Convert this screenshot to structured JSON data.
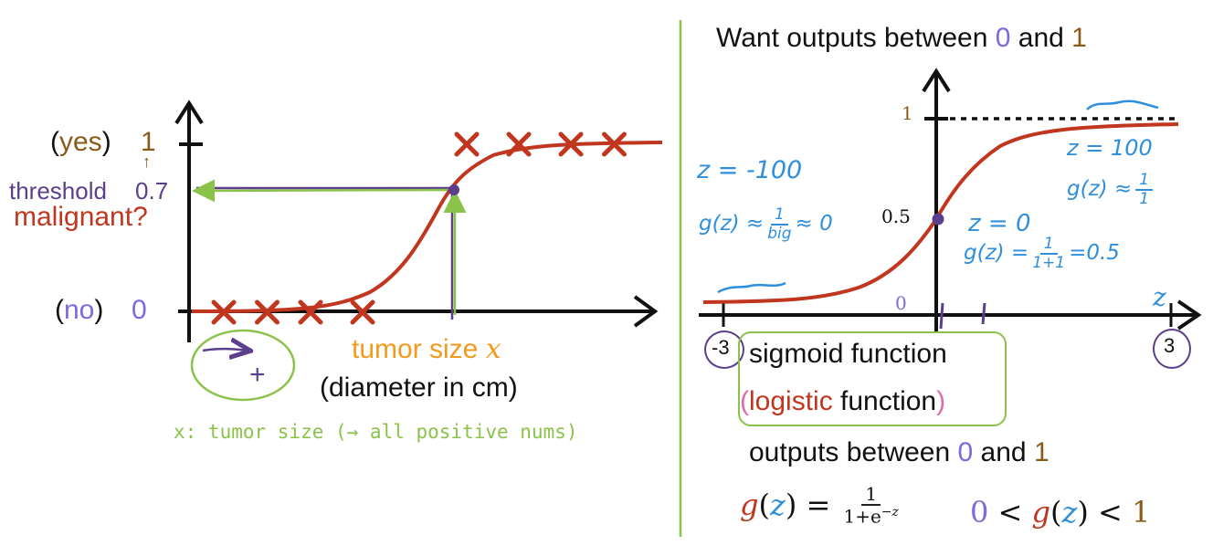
{
  "colors": {
    "ink": "#111111",
    "curve": "#c0361f",
    "cross": "#c0361f",
    "green": "#8bc34a",
    "purple": "#5b3f8c",
    "blue": "#2f8fdc",
    "orange": "#f29a1d",
    "brown": "#8a5a1a",
    "violet": "#7a6be0",
    "pink": "#e06ab0"
  },
  "left": {
    "yes_open": "(",
    "yes_word": "yes",
    "yes_close": ")",
    "yes_value": "1",
    "no_open": "(",
    "no_word": "no",
    "no_close": ")",
    "no_value": "0",
    "threshold_label": "threshold",
    "threshold_value": "0.7",
    "malignant_label": "malignant?",
    "xlabel_word": "tumor size ",
    "xlabel_var": "x",
    "xlabel_units": "(diameter in cm)",
    "note": "x: tumor size (→ all positive nums)",
    "plus_sign": "+"
  },
  "right": {
    "title_pre": "Want outputs between ",
    "title_zero": "0",
    "title_and": " and ",
    "title_one": "1",
    "tick_one": "1",
    "tick_half": "0.5",
    "tick_zero": "0",
    "axis_var": "z",
    "neg_label": "-3",
    "pos_label": "3",
    "z_neg100": "z = -100",
    "g_neg_left": "g(z) ≈",
    "g_neg_num": "1",
    "g_neg_den": "big",
    "g_neg_right": "≈ 0",
    "z_zero": "z = 0",
    "g_zero_left": "g(z) =",
    "g_zero_num": "1",
    "g_zero_den": "1+1",
    "g_zero_right": "=0.5",
    "z_100": "z = 100",
    "g_pos_left": "g(z) ≈",
    "g_pos_num": "1",
    "g_pos_den": "1",
    "sigmoid_label": "sigmoid function",
    "logistic_open": "(",
    "logistic_word": "logistic",
    "logistic_rest": " function",
    "logistic_close": ")",
    "outputs_pre": "outputs between ",
    "outputs_zero": "0",
    "outputs_and": " and ",
    "outputs_one": "1",
    "formula_g": "g",
    "formula_paren_open": "(",
    "formula_z": "z",
    "formula_paren_close": ")",
    "formula_eq": " = ",
    "formula_num": "1",
    "formula_den_base": "1+e",
    "formula_den_exp": "−z",
    "range_zero": "0",
    "range_lt1": " < ",
    "range_g": "g",
    "range_open": "(",
    "range_z": "z",
    "range_close": ")",
    "range_lt2": " < ",
    "range_one": "1"
  },
  "left_plot": {
    "y_values": [
      0,
      0.7,
      1
    ],
    "crosses_no": [
      0.2,
      0.45,
      0.7,
      1.0
    ],
    "crosses_yes": [
      1.6,
      1.9,
      2.2,
      2.45
    ],
    "threshold_x": 1.45
  },
  "sigmoid_plot": {
    "x_range": [
      -3,
      3
    ],
    "y_range": [
      0,
      1
    ],
    "marked_point": [
      0,
      0.5
    ]
  }
}
